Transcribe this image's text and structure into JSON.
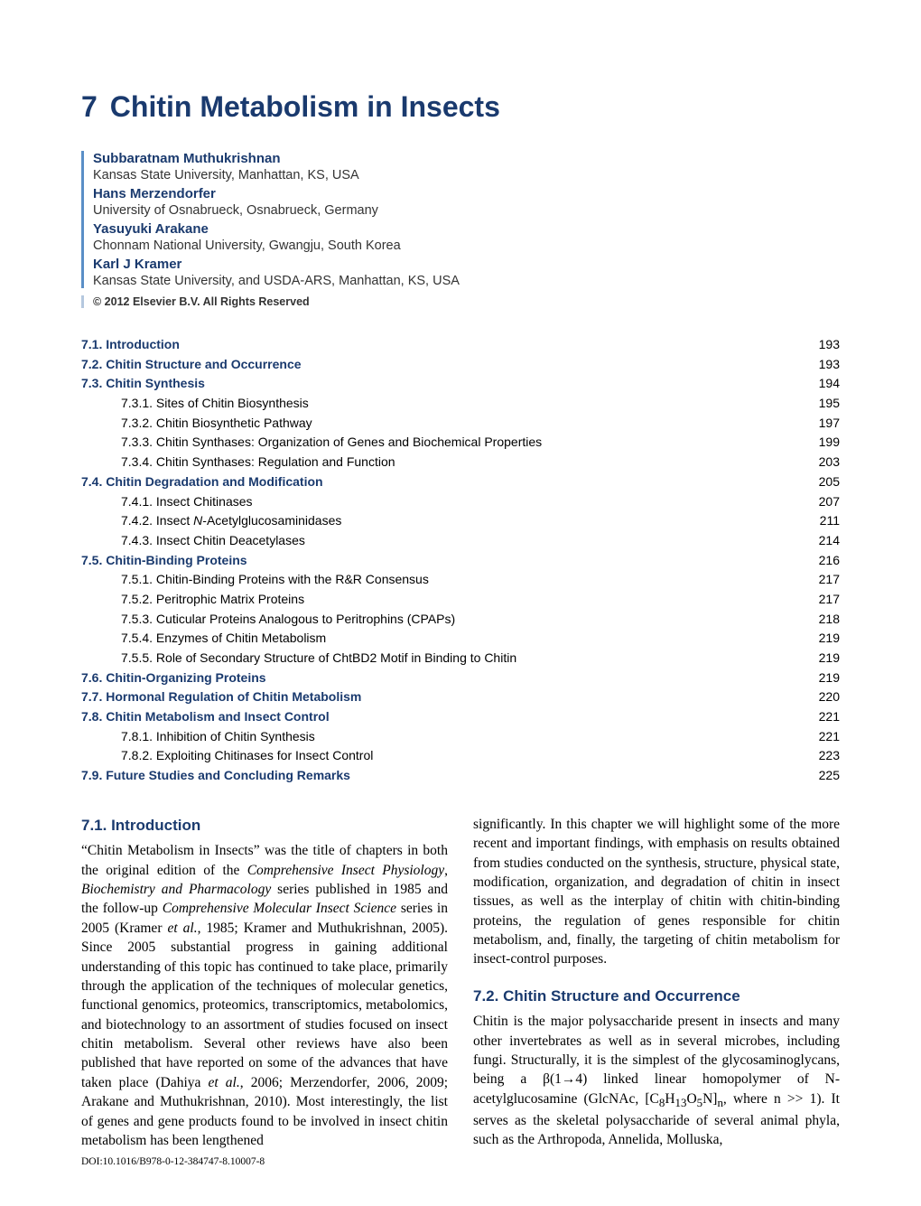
{
  "chapter": {
    "number": "7",
    "title": "Chitin Metabolism in Insects"
  },
  "authors": [
    {
      "name": "Subbaratnam Muthukrishnan",
      "affil": "Kansas State University, Manhattan, KS, USA"
    },
    {
      "name": "Hans Merzendorfer",
      "affil": "University of Osnabrueck, Osnabrueck, Germany"
    },
    {
      "name": "Yasuyuki Arakane",
      "affil": "Chonnam National University, Gwangju, South Korea"
    },
    {
      "name": "Karl J Kramer",
      "affil": "Kansas State University, and USDA-ARS, Manhattan, KS, USA"
    }
  ],
  "copyright": "© 2012 Elsevier B.V. All Rights Reserved",
  "toc": [
    {
      "level": 1,
      "num": "7.1.",
      "title": "Introduction",
      "page": "193"
    },
    {
      "level": 1,
      "num": "7.2.",
      "title": "Chitin Structure and Occurrence",
      "page": "193"
    },
    {
      "level": 1,
      "num": "7.3.",
      "title": "Chitin Synthesis",
      "page": "194"
    },
    {
      "level": 2,
      "num": "7.3.1.",
      "title": "Sites of Chitin Biosynthesis",
      "page": "195"
    },
    {
      "level": 2,
      "num": "7.3.2.",
      "title": "Chitin Biosynthetic Pathway",
      "page": "197"
    },
    {
      "level": 2,
      "num": "7.3.3.",
      "title": "Chitin Synthases: Organization of Genes and Biochemical Properties",
      "page": "199"
    },
    {
      "level": 2,
      "num": "7.3.4.",
      "title": "Chitin Synthases: Regulation and Function",
      "page": "203"
    },
    {
      "level": 1,
      "num": "7.4.",
      "title": "Chitin Degradation and Modification",
      "page": "205"
    },
    {
      "level": 2,
      "num": "7.4.1.",
      "title": "Insect Chitinases",
      "page": "207"
    },
    {
      "level": 2,
      "num": "7.4.2.",
      "title": "Insect N-Acetylglucosaminidases",
      "page": "211",
      "italic_part": "N"
    },
    {
      "level": 2,
      "num": "7.4.3.",
      "title": "Insect Chitin Deacetylases",
      "page": "214"
    },
    {
      "level": 1,
      "num": "7.5.",
      "title": "Chitin-Binding Proteins",
      "page": "216"
    },
    {
      "level": 2,
      "num": "7.5.1.",
      "title": "Chitin-Binding Proteins with the R&R Consensus",
      "page": "217"
    },
    {
      "level": 2,
      "num": "7.5.2.",
      "title": "Peritrophic Matrix Proteins",
      "page": "217"
    },
    {
      "level": 2,
      "num": "7.5.3.",
      "title": "Cuticular Proteins Analogous to Peritrophins (CPAPs)",
      "page": "218"
    },
    {
      "level": 2,
      "num": "7.5.4.",
      "title": "Enzymes of Chitin Metabolism",
      "page": "219"
    },
    {
      "level": 2,
      "num": "7.5.5.",
      "title": "Role of Secondary Structure of ChtBD2 Motif in Binding to Chitin",
      "page": "219"
    },
    {
      "level": 1,
      "num": "7.6.",
      "title": "Chitin-Organizing Proteins",
      "page": "219"
    },
    {
      "level": 1,
      "num": "7.7.",
      "title": "Hormonal Regulation of Chitin Metabolism",
      "page": "220"
    },
    {
      "level": 1,
      "num": "7.8.",
      "title": "Chitin Metabolism and Insect Control",
      "page": "221"
    },
    {
      "level": 2,
      "num": "7.8.1.",
      "title": "Inhibition of Chitin Synthesis",
      "page": "221"
    },
    {
      "level": 2,
      "num": "7.8.2.",
      "title": "Exploiting Chitinases for Insect Control",
      "page": "223"
    },
    {
      "level": 1,
      "num": "7.9.",
      "title": "Future Studies and Concluding Remarks",
      "page": "225"
    }
  ],
  "sections": {
    "s71": {
      "heading": "7.1.  Introduction",
      "para": "“Chitin Metabolism in Insects” was the title of chapters in both the original edition of the Comprehensive Insect Physiology, Biochemistry and Pharmacology series published in 1985 and the follow-up Comprehensive Molecular Insect Science series in 2005 (Kramer et al., 1985; Kramer and Muthukrishnan, 2005). Since 2005 substantial progress in gaining additional understanding of this topic has continued to take place, primarily through the application of the techniques of molecular genetics, functional genomics, proteomics, transcriptomics, metabolomics, and biotechnology to an assortment of studies focused on insect chitin metabolism. Several other reviews have also been published that have reported on some of the advances that have taken place (Dahiya et al., 2006; Merzendorfer, 2006, 2009; Arakane and Muthukrishnan, 2010). Most interestingly, the list of genes and gene products found to be involved in insect chitin metabolism has been lengthened",
      "para_cont": "significantly. In this chapter we will highlight some of the more recent and important findings, with emphasis on results obtained from studies conducted on the synthesis, structure, physical state, modification, organization, and degradation of chitin in insect tissues, as well as the interplay of chitin with chitin-binding proteins, the regulation of genes responsible for chitin metabolism, and, finally, the targeting of chitin metabolism for insect-control purposes."
    },
    "s72": {
      "heading": "7.2.  Chitin Structure and Occurrence",
      "para": "Chitin is the major polysaccharide present in insects and many other invertebrates as well as in several microbes, including fungi. Structurally, it is the simplest of the glycosaminoglycans, being a β(1→4) linked linear homopolymer of N-acetylglucosamine (GlcNAc, [C₈H₁₃O₅N]ₙ, where n >> 1). It serves as the skeletal polysaccharide of several animal phyla, such as the Arthropoda, Annelida, Molluska,"
    }
  },
  "doi": "DOI:10.1016/B978-0-12-384747-8.10007-8"
}
